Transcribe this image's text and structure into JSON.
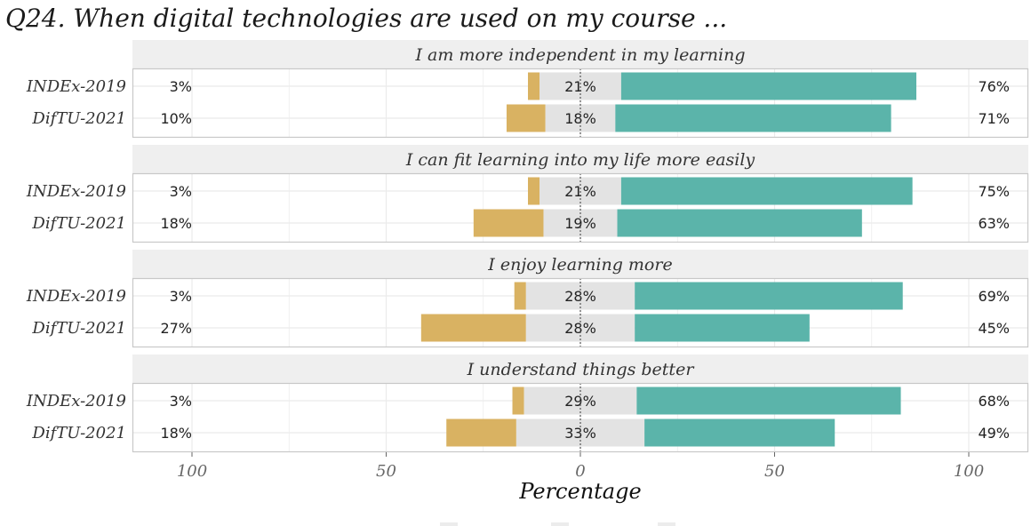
{
  "title": "Q24. When digital technologies are used on my course ...",
  "colors": {
    "disagree": "#d9b262",
    "neutral": "#e3e3e3",
    "agree": "#5bb4aa",
    "strip_bg": "#efefef",
    "panel_border": "#c8c8c8",
    "grid": "#ebebeb"
  },
  "chart_data": {
    "type": "bar",
    "subtype": "diverging-stacked-likert",
    "xlabel": "Percentage",
    "xlim": [
      -100,
      100
    ],
    "x_ticks": [
      -100,
      -50,
      0,
      50,
      100
    ],
    "x_tick_labels": [
      "100",
      "50",
      "0",
      "50",
      "100"
    ],
    "grid": true,
    "legend": "bottom",
    "categories": [
      "INDEx-2019",
      "DifTU-2021"
    ],
    "panels": [
      {
        "title": "I am more independent in my learning",
        "rows": [
          {
            "label": "INDEx-2019",
            "disagree": 3,
            "neutral": 21,
            "agree": 76,
            "disagree_label": "3%",
            "neutral_label": "21%",
            "agree_label": "76%"
          },
          {
            "label": "DifTU-2021",
            "disagree": 10,
            "neutral": 18,
            "agree": 71,
            "disagree_label": "10%",
            "neutral_label": "18%",
            "agree_label": "71%"
          }
        ]
      },
      {
        "title": "I can fit learning into my life more easily",
        "rows": [
          {
            "label": "INDEx-2019",
            "disagree": 3,
            "neutral": 21,
            "agree": 75,
            "disagree_label": "3%",
            "neutral_label": "21%",
            "agree_label": "75%"
          },
          {
            "label": "DifTU-2021",
            "disagree": 18,
            "neutral": 19,
            "agree": 63,
            "disagree_label": "18%",
            "neutral_label": "19%",
            "agree_label": "63%"
          }
        ]
      },
      {
        "title": "I enjoy learning more",
        "rows": [
          {
            "label": "INDEx-2019",
            "disagree": 3,
            "neutral": 28,
            "agree": 69,
            "disagree_label": "3%",
            "neutral_label": "28%",
            "agree_label": "69%"
          },
          {
            "label": "DifTU-2021",
            "disagree": 27,
            "neutral": 28,
            "agree": 45,
            "disagree_label": "27%",
            "neutral_label": "28%",
            "agree_label": "45%"
          }
        ]
      },
      {
        "title": "I understand things better",
        "rows": [
          {
            "label": "INDEx-2019",
            "disagree": 3,
            "neutral": 29,
            "agree": 68,
            "disagree_label": "3%",
            "neutral_label": "29%",
            "agree_label": "68%"
          },
          {
            "label": "DifTU-2021",
            "disagree": 18,
            "neutral": 33,
            "agree": 49,
            "disagree_label": "18%",
            "neutral_label": "33%",
            "agree_label": "49%"
          }
        ]
      }
    ]
  }
}
